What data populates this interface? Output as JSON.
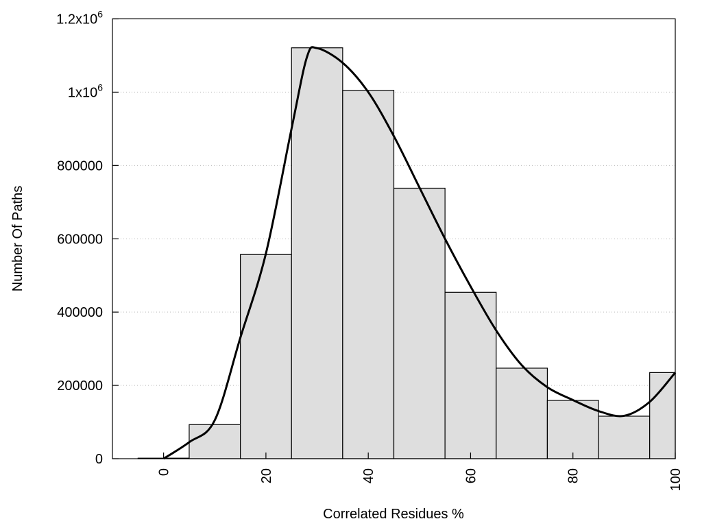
{
  "chart_data": {
    "type": "bar",
    "title": "",
    "xlabel": "Correlated Residues %",
    "ylabel": "Number Of Paths",
    "xlim": [
      -10,
      100
    ],
    "ylim": [
      0,
      1200000
    ],
    "grid": "horizontal dotted",
    "bar_width": 10,
    "bar_color": "#dedede",
    "curve_color": "#000000",
    "x_ticks": [
      {
        "value": 0,
        "label": "0"
      },
      {
        "value": 20,
        "label": "20"
      },
      {
        "value": 40,
        "label": "40"
      },
      {
        "value": 60,
        "label": "60"
      },
      {
        "value": 80,
        "label": "80"
      },
      {
        "value": 100,
        "label": "100"
      }
    ],
    "y_ticks": [
      {
        "value": 0,
        "label": "0"
      },
      {
        "value": 200000,
        "label": "200000"
      },
      {
        "value": 400000,
        "label": "400000"
      },
      {
        "value": 600000,
        "label": "600000"
      },
      {
        "value": 800000,
        "label": "800000"
      },
      {
        "value": 1000000,
        "label": "1x10",
        "sup": "6"
      },
      {
        "value": 1200000,
        "label": "1.2x10",
        "sup": "6"
      }
    ],
    "bars": {
      "x": [
        0,
        10,
        20,
        30,
        40,
        50,
        60,
        70,
        80,
        90,
        100
      ],
      "values": [
        1500,
        93000,
        557000,
        1121000,
        1005000,
        738000,
        454000,
        247000,
        159000,
        116000,
        235000
      ]
    },
    "curve": {
      "x": [
        0,
        5,
        10,
        15,
        20,
        25,
        28,
        30,
        35,
        40,
        45,
        50,
        55,
        60,
        65,
        70,
        75,
        80,
        85,
        90,
        95,
        100
      ],
      "y": [
        0,
        45000,
        105000,
        330000,
        560000,
        900000,
        1095000,
        1120000,
        1080000,
        1000000,
        880000,
        740000,
        600000,
        470000,
        350000,
        255000,
        195000,
        160000,
        130000,
        117000,
        155000,
        235000
      ]
    }
  }
}
